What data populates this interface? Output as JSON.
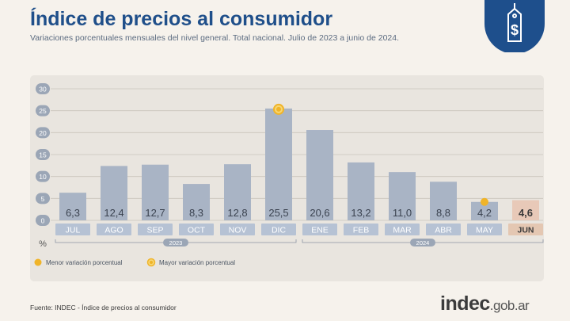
{
  "header": {
    "title": "Índice de precios al consumidor",
    "subtitle": "Variaciones porcentuales mensuales del nivel general. Total nacional. Julio de 2023 a junio de 2024."
  },
  "badge_icon": "price-tag-dollar-icon",
  "footer": {
    "source": "Fuente: INDEC - Índice de precios al consumidor",
    "brand_bold": "indec",
    "brand_rest": ".gob.ar"
  },
  "colors": {
    "title": "#1f4f8a",
    "bar": "#a9b4c5",
    "bar_highlight": "#e8c9b8",
    "label_box": "#b6c2d4",
    "label_box_highlight": "#e4c7b2",
    "marker": "#f0b429",
    "badge": "#1e4f8c"
  },
  "chart_data": {
    "type": "bar",
    "categories": [
      "JUL",
      "AGO",
      "SEP",
      "OCT",
      "NOV",
      "DIC",
      "ENE",
      "FEB",
      "MAR",
      "ABR",
      "MAY",
      "JUN"
    ],
    "values": [
      6.3,
      12.4,
      12.7,
      8.3,
      12.8,
      25.5,
      20.6,
      13.2,
      11.0,
      8.8,
      4.2,
      4.6
    ],
    "value_labels": [
      "6,3",
      "12,4",
      "12,7",
      "8,3",
      "12,8",
      "25,5",
      "20,6",
      "13,2",
      "11,0",
      "8,8",
      "4,2",
      "4,6"
    ],
    "highlight_index": 11,
    "ylim": [
      0,
      30
    ],
    "yticks": [
      0,
      5,
      10,
      15,
      20,
      25,
      30
    ],
    "ylabel": "%",
    "grid": true,
    "years": [
      {
        "label": "2023",
        "from": 0,
        "to": 5
      },
      {
        "label": "2024",
        "from": 6,
        "to": 11
      }
    ],
    "markers": [
      {
        "index": 10,
        "kind": "min"
      },
      {
        "index": 5,
        "kind": "max"
      }
    ],
    "legend": [
      {
        "kind": "min",
        "label": "Menor variación porcentual"
      },
      {
        "kind": "max",
        "label": "Mayor variación porcentual"
      }
    ],
    "legend_position": "bottom-left"
  }
}
